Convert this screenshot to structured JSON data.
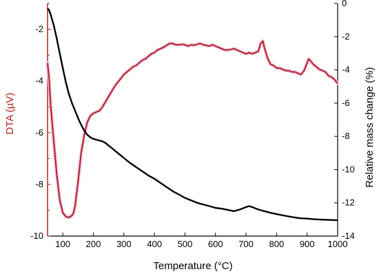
{
  "chart_data": {
    "type": "line",
    "xlabel": "Temperature (°C)",
    "ylabel_left": "DTA (µV)",
    "ylabel_right": "Relative mass change (%)",
    "xlim": [
      50,
      1000
    ],
    "ylim_left": [
      -10,
      -1
    ],
    "ylim_right": [
      -14,
      0
    ],
    "x_ticks": [
      "100",
      "200",
      "300",
      "400",
      "500",
      "600",
      "700",
      "800",
      "900",
      "1000"
    ],
    "y_left_ticks": [
      "-2",
      "-4",
      "-6",
      "-8",
      "-10"
    ],
    "y_right_ticks": [
      "0",
      "-2",
      "-4",
      "-6",
      "-8",
      "-10",
      "-12",
      "-14"
    ],
    "grid": false,
    "colors": {
      "dta": "#b22222",
      "dta_halo": "#f3c6e6",
      "mass": "#000000",
      "left_axis": "#b22222"
    },
    "series": [
      {
        "axis": "left",
        "x": [
          50,
          55,
          60,
          70,
          80,
          90,
          100,
          110,
          120,
          130,
          135,
          140,
          150,
          160,
          170,
          180,
          190,
          200,
          210,
          220,
          230,
          240,
          250,
          260,
          270,
          280,
          290,
          300,
          310,
          320,
          330,
          340,
          350,
          360,
          370,
          380,
          390,
          400,
          410,
          420,
          430,
          440,
          450,
          460,
          470,
          480,
          490,
          500,
          510,
          520,
          530,
          540,
          550,
          560,
          570,
          580,
          590,
          600,
          610,
          620,
          630,
          640,
          650,
          660,
          670,
          680,
          690,
          700,
          710,
          720,
          730,
          740,
          748,
          755,
          760,
          770,
          780,
          790,
          800,
          810,
          820,
          830,
          840,
          850,
          860,
          870,
          880,
          890,
          900,
          905,
          910,
          920,
          930,
          940,
          950,
          960,
          970,
          980,
          990,
          1000
        ],
        "values": [
          -3.3,
          -3.9,
          -4.9,
          -6.3,
          -7.6,
          -8.6,
          -9.1,
          -9.25,
          -9.28,
          -9.2,
          -9.1,
          -8.85,
          -7.9,
          -6.8,
          -6.1,
          -5.6,
          -5.35,
          -5.25,
          -5.2,
          -5.15,
          -5.0,
          -4.8,
          -4.6,
          -4.4,
          -4.2,
          -4.05,
          -3.9,
          -3.75,
          -3.65,
          -3.55,
          -3.45,
          -3.4,
          -3.3,
          -3.2,
          -3.15,
          -3.05,
          -2.95,
          -2.9,
          -2.8,
          -2.75,
          -2.7,
          -2.62,
          -2.55,
          -2.55,
          -2.6,
          -2.6,
          -2.58,
          -2.6,
          -2.65,
          -2.6,
          -2.62,
          -2.58,
          -2.55,
          -2.6,
          -2.62,
          -2.65,
          -2.6,
          -2.65,
          -2.7,
          -2.75,
          -2.8,
          -2.8,
          -2.78,
          -2.75,
          -2.8,
          -2.85,
          -2.9,
          -2.95,
          -2.9,
          -2.95,
          -2.9,
          -2.85,
          -2.55,
          -2.45,
          -2.7,
          -3.1,
          -3.35,
          -3.4,
          -3.5,
          -3.5,
          -3.55,
          -3.6,
          -3.6,
          -3.65,
          -3.65,
          -3.7,
          -3.75,
          -3.6,
          -3.3,
          -3.15,
          -3.2,
          -3.35,
          -3.45,
          -3.55,
          -3.6,
          -3.65,
          -3.8,
          -3.85,
          -3.95,
          -4.1
        ]
      },
      {
        "axis": "right",
        "x": [
          50,
          55,
          60,
          70,
          80,
          90,
          100,
          110,
          120,
          130,
          140,
          150,
          160,
          170,
          180,
          190,
          200,
          210,
          220,
          230,
          240,
          250,
          260,
          270,
          280,
          290,
          300,
          320,
          340,
          360,
          380,
          400,
          420,
          440,
          460,
          480,
          500,
          520,
          540,
          560,
          580,
          600,
          620,
          640,
          660,
          680,
          700,
          710,
          720,
          740,
          760,
          780,
          800,
          820,
          840,
          860,
          880,
          900,
          920,
          940,
          960,
          980,
          1000
        ],
        "values": [
          -0.3,
          -0.4,
          -0.65,
          -1.3,
          -2.1,
          -3.0,
          -3.9,
          -4.75,
          -5.45,
          -6.0,
          -6.45,
          -6.9,
          -7.3,
          -7.65,
          -7.9,
          -8.05,
          -8.15,
          -8.2,
          -8.25,
          -8.3,
          -8.4,
          -8.55,
          -8.7,
          -8.85,
          -9.0,
          -9.15,
          -9.3,
          -9.6,
          -9.85,
          -10.1,
          -10.35,
          -10.55,
          -10.8,
          -11.05,
          -11.3,
          -11.5,
          -11.7,
          -11.85,
          -12.0,
          -12.1,
          -12.2,
          -12.3,
          -12.35,
          -12.42,
          -12.5,
          -12.4,
          -12.25,
          -12.2,
          -12.25,
          -12.4,
          -12.5,
          -12.6,
          -12.68,
          -12.75,
          -12.82,
          -12.88,
          -12.93,
          -12.95,
          -12.98,
          -13.0,
          -13.02,
          -13.03,
          -13.05
        ]
      }
    ]
  }
}
